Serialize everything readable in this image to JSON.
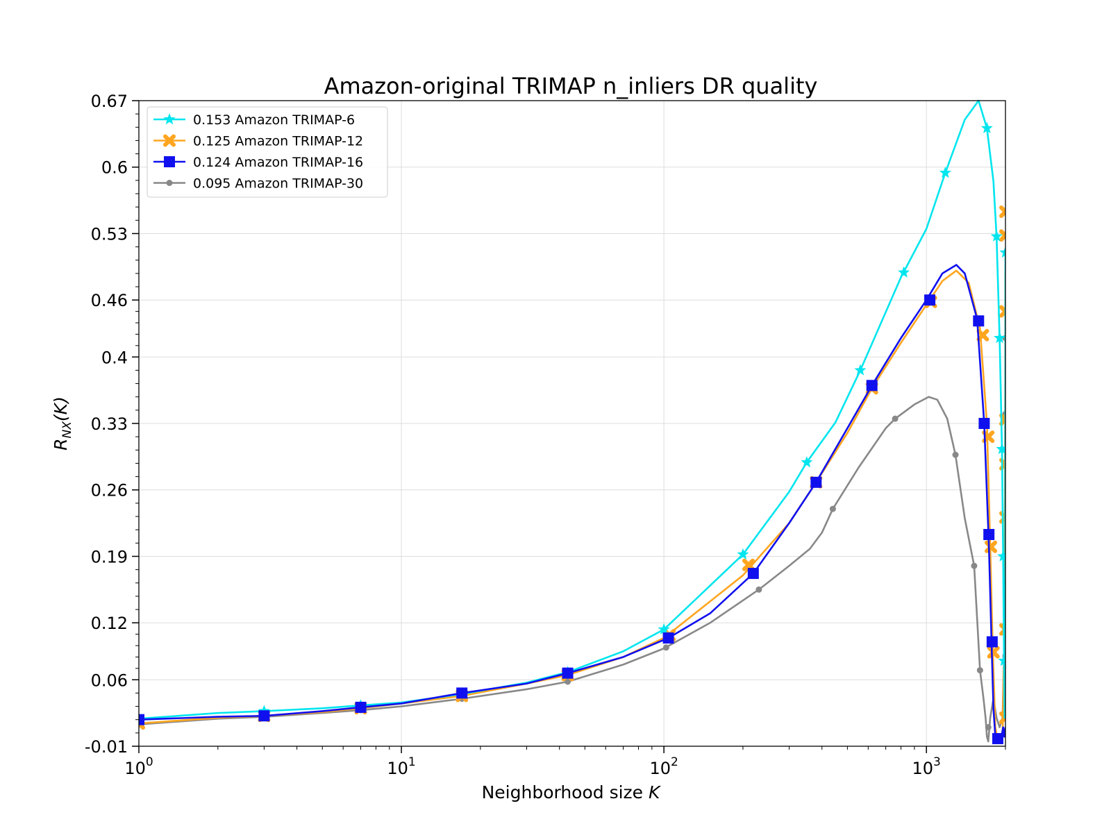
{
  "chart_data": {
    "type": "line",
    "title": "Amazon-original TRIMAP n_inliers DR quality",
    "xlabel": "Neighborhood size K",
    "ylabel": "R_NX(K)",
    "xscale": "log",
    "xlim": [
      1,
      2000
    ],
    "ylim": [
      -0.01,
      0.67
    ],
    "yticks": [
      "-0.01",
      "0.06",
      "0.12",
      "0.19",
      "0.26",
      "0.33",
      "0.4",
      "0.46",
      "0.53",
      "0.6",
      "0.67"
    ],
    "ytick_values": [
      -0.01,
      0.06,
      0.12,
      0.19,
      0.26,
      0.33,
      0.4,
      0.46,
      0.53,
      0.6,
      0.67
    ],
    "xticks": [
      {
        "value": 1,
        "base": "10",
        "exp": "0"
      },
      {
        "value": 10,
        "base": "10",
        "exp": "1"
      },
      {
        "value": 100,
        "base": "10",
        "exp": "2"
      },
      {
        "value": 1000,
        "base": "10",
        "exp": "3"
      }
    ],
    "grid": true,
    "legend_position": "top-left",
    "series": [
      {
        "name": "0.153 Amazon TRIMAP-6",
        "color": "#00e5ee",
        "marker": "star",
        "points": [
          [
            1,
            0.019
          ],
          [
            2,
            0.025
          ],
          [
            3,
            0.027
          ],
          [
            5,
            0.03
          ],
          [
            7,
            0.033
          ],
          [
            10,
            0.036
          ],
          [
            17,
            0.045
          ],
          [
            30,
            0.057
          ],
          [
            43,
            0.068
          ],
          [
            70,
            0.09
          ],
          [
            100,
            0.113
          ],
          [
            200,
            0.192
          ],
          [
            300,
            0.258
          ],
          [
            350,
            0.289
          ],
          [
            450,
            0.331
          ],
          [
            560,
            0.386
          ],
          [
            800,
            0.484
          ],
          [
            1000,
            0.535
          ],
          [
            1180,
            0.594
          ],
          [
            1400,
            0.65
          ],
          [
            1580,
            0.67
          ],
          [
            1700,
            0.641
          ],
          [
            1800,
            0.585
          ],
          [
            1850,
            0.527
          ],
          [
            1900,
            0.42
          ],
          [
            1940,
            0.303
          ],
          [
            1960,
            0.19
          ],
          [
            1975,
            0.08
          ],
          [
            1985,
            0.02
          ],
          [
            1992,
            0.06
          ],
          [
            1996,
            0.175
          ],
          [
            1998,
            0.3
          ],
          [
            2000,
            0.51
          ]
        ],
        "markers": [
          [
            1,
            0.019
          ],
          [
            3,
            0.027
          ],
          [
            7,
            0.033
          ],
          [
            17,
            0.045
          ],
          [
            43,
            0.068
          ],
          [
            100,
            0.113
          ],
          [
            200,
            0.192
          ],
          [
            350,
            0.289
          ],
          [
            560,
            0.386
          ],
          [
            820,
            0.489
          ],
          [
            1180,
            0.594
          ],
          [
            1700,
            0.641
          ],
          [
            1850,
            0.527
          ],
          [
            1900,
            0.42
          ],
          [
            1940,
            0.303
          ],
          [
            1960,
            0.19
          ],
          [
            1975,
            0.08
          ],
          [
            2000,
            0.51
          ]
        ]
      },
      {
        "name": "0.125 Amazon TRIMAP-12",
        "color": "#ffa520",
        "marker": "x",
        "points": [
          [
            1,
            0.014
          ],
          [
            2,
            0.02
          ],
          [
            3,
            0.022
          ],
          [
            5,
            0.026
          ],
          [
            7,
            0.03
          ],
          [
            10,
            0.035
          ],
          [
            17,
            0.043
          ],
          [
            30,
            0.056
          ],
          [
            43,
            0.065
          ],
          [
            70,
            0.084
          ],
          [
            100,
            0.104
          ],
          [
            200,
            0.17
          ],
          [
            300,
            0.225
          ],
          [
            380,
            0.268
          ],
          [
            500,
            0.32
          ],
          [
            620,
            0.367
          ],
          [
            800,
            0.415
          ],
          [
            1000,
            0.455
          ],
          [
            1150,
            0.48
          ],
          [
            1300,
            0.491
          ],
          [
            1450,
            0.478
          ],
          [
            1600,
            0.43
          ],
          [
            1700,
            0.33
          ],
          [
            1750,
            0.2
          ],
          [
            1790,
            0.09
          ],
          [
            1830,
            0.01
          ],
          [
            1860,
            0.0
          ],
          [
            1900,
            -0.005
          ],
          [
            1950,
            0.0
          ],
          [
            1980,
            0.1
          ],
          [
            1995,
            0.3
          ],
          [
            2000,
            0.49
          ]
        ],
        "markers": [
          [
            1,
            0.014
          ],
          [
            3,
            0.022
          ],
          [
            7,
            0.03
          ],
          [
            17,
            0.043
          ],
          [
            43,
            0.065
          ],
          [
            105,
            0.107
          ],
          [
            210,
            0.181
          ],
          [
            380,
            0.268
          ],
          [
            620,
            0.367
          ],
          [
            1040,
            0.458
          ],
          [
            1640,
            0.423
          ],
          [
            1720,
            0.316
          ],
          [
            1760,
            0.2
          ],
          [
            1800,
            0.089
          ],
          [
            2000,
            0.553
          ],
          [
            2000,
            0.528
          ],
          [
            2000,
            0.448
          ],
          [
            2000,
            0.334
          ],
          [
            2000,
            0.287
          ],
          [
            2000,
            0.231
          ],
          [
            2000,
            0.113
          ],
          [
            2000,
            0.02
          ]
        ]
      },
      {
        "name": "0.124 Amazon TRIMAP-16",
        "color": "#1010ee",
        "marker": "square",
        "points": [
          [
            1,
            0.018
          ],
          [
            2,
            0.021
          ],
          [
            3,
            0.022
          ],
          [
            5,
            0.027
          ],
          [
            7,
            0.031
          ],
          [
            10,
            0.035
          ],
          [
            17,
            0.046
          ],
          [
            30,
            0.056
          ],
          [
            43,
            0.067
          ],
          [
            70,
            0.084
          ],
          [
            104,
            0.104
          ],
          [
            150,
            0.13
          ],
          [
            219,
            0.172
          ],
          [
            300,
            0.225
          ],
          [
            380,
            0.268
          ],
          [
            500,
            0.325
          ],
          [
            620,
            0.37
          ],
          [
            800,
            0.42
          ],
          [
            1000,
            0.46
          ],
          [
            1150,
            0.488
          ],
          [
            1300,
            0.497
          ],
          [
            1400,
            0.488
          ],
          [
            1560,
            0.44
          ],
          [
            1660,
            0.33
          ],
          [
            1730,
            0.2
          ],
          [
            1770,
            0.1
          ],
          [
            1800,
            0.03
          ],
          [
            1830,
            0.0
          ],
          [
            1880,
            -0.005
          ],
          [
            1930,
            0.0
          ],
          [
            1960,
            0.01
          ],
          [
            1980,
            0.0
          ],
          [
            2000,
            0.01
          ]
        ],
        "markers": [
          [
            1,
            0.018
          ],
          [
            3,
            0.022
          ],
          [
            7,
            0.031
          ],
          [
            17,
            0.046
          ],
          [
            43,
            0.067
          ],
          [
            104,
            0.104
          ],
          [
            219,
            0.172
          ],
          [
            380,
            0.268
          ],
          [
            620,
            0.37
          ],
          [
            1030,
            0.46
          ],
          [
            1580,
            0.438
          ],
          [
            1660,
            0.33
          ],
          [
            1730,
            0.213
          ],
          [
            1780,
            0.1
          ],
          [
            1870,
            -0.002
          ]
        ]
      },
      {
        "name": "0.095 Amazon TRIMAP-30",
        "color": "#888888",
        "marker": "dot",
        "points": [
          [
            1,
            0.013
          ],
          [
            2,
            0.019
          ],
          [
            3,
            0.021
          ],
          [
            5,
            0.025
          ],
          [
            7,
            0.028
          ],
          [
            10,
            0.032
          ],
          [
            17,
            0.04
          ],
          [
            30,
            0.05
          ],
          [
            43,
            0.058
          ],
          [
            70,
            0.076
          ],
          [
            100,
            0.093
          ],
          [
            150,
            0.12
          ],
          [
            230,
            0.155
          ],
          [
            300,
            0.18
          ],
          [
            360,
            0.198
          ],
          [
            400,
            0.215
          ],
          [
            440,
            0.24
          ],
          [
            550,
            0.283
          ],
          [
            700,
            0.325
          ],
          [
            760,
            0.335
          ],
          [
            900,
            0.35
          ],
          [
            1020,
            0.358
          ],
          [
            1100,
            0.355
          ],
          [
            1200,
            0.335
          ],
          [
            1290,
            0.297
          ],
          [
            1400,
            0.23
          ],
          [
            1520,
            0.18
          ],
          [
            1600,
            0.07
          ],
          [
            1650,
            0.04
          ],
          [
            1680,
            0.02
          ],
          [
            1700,
            0.0
          ],
          [
            1720,
            -0.005
          ],
          [
            1750,
            0.02
          ],
          [
            1800,
            0.04
          ],
          [
            1850,
            0.02
          ],
          [
            1900,
            0.01
          ],
          [
            1950,
            0.02
          ],
          [
            1980,
            0.1
          ],
          [
            1995,
            0.3
          ],
          [
            2000,
            0.42
          ]
        ],
        "markers": [
          [
            1,
            0.013
          ],
          [
            7,
            0.028
          ],
          [
            17,
            0.04
          ],
          [
            43,
            0.058
          ],
          [
            102,
            0.094
          ],
          [
            230,
            0.155
          ],
          [
            440,
            0.24
          ],
          [
            760,
            0.335
          ],
          [
            1290,
            0.297
          ],
          [
            1520,
            0.18
          ],
          [
            1600,
            0.07
          ],
          [
            1720,
            0.01
          ],
          [
            2000,
            0.42
          ],
          [
            2000,
            0.34
          ],
          [
            2000,
            0.19
          ],
          [
            2000,
            0.085
          ]
        ]
      }
    ]
  }
}
